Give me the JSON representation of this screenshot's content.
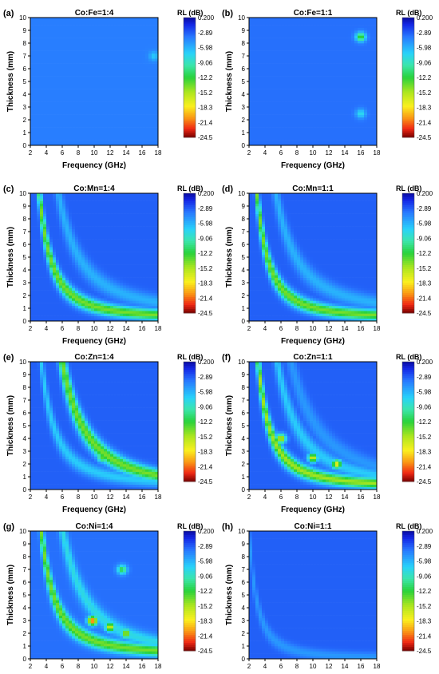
{
  "chart_data": [
    {
      "type": "heatmap",
      "panel": "(a)",
      "title": "Co:Fe=1:4",
      "xlabel": "Frequency (GHz)",
      "ylabel": "Thickness (mm)",
      "xlim": [
        2,
        18
      ],
      "ylim": [
        0,
        10
      ],
      "xticks": [
        2,
        4,
        6,
        8,
        10,
        12,
        14,
        16,
        18
      ],
      "yticks": [
        0,
        1,
        2,
        3,
        4,
        5,
        6,
        7,
        8,
        9,
        10
      ],
      "colorbar": {
        "title": "RL (dB)",
        "ticks": [
          "0.200",
          "-2.89",
          "-5.98",
          "-9.06",
          "-12.2",
          "-15.2",
          "-18.3",
          "-21.4",
          "-24.5"
        ],
        "range": [
          -24.5,
          0.2
        ]
      },
      "base_rl": -4,
      "bands": [],
      "spots": [
        {
          "f": 17.5,
          "t": 7,
          "rl": -7
        }
      ]
    },
    {
      "type": "heatmap",
      "panel": "(b)",
      "title": "Co:Fe=1:1",
      "xlabel": "Frequency (GHz)",
      "ylabel": "Thickness (mm)",
      "xlim": [
        2,
        18
      ],
      "ylim": [
        0,
        10
      ],
      "xticks": [
        2,
        4,
        6,
        8,
        10,
        12,
        14,
        16,
        18
      ],
      "yticks": [
        0,
        1,
        2,
        3,
        4,
        5,
        6,
        7,
        8,
        9,
        10
      ],
      "colorbar": {
        "title": "RL (dB)",
        "ticks": [
          "0.200",
          "-2.89",
          "-5.98",
          "-9.06",
          "-12.2",
          "-15.2",
          "-18.3",
          "-21.4",
          "-24.5"
        ],
        "range": [
          -24.5,
          0.2
        ]
      },
      "base_rl": -3.5,
      "bands": [],
      "spots": [
        {
          "f": 16,
          "t": 8.5,
          "rl": -13
        },
        {
          "f": 16,
          "t": 2.5,
          "rl": -8
        }
      ]
    },
    {
      "type": "heatmap",
      "panel": "(c)",
      "title": "Co:Mn=1:4",
      "xlabel": "Frequency (GHz)",
      "ylabel": "Thickness (mm)",
      "xlim": [
        2,
        18
      ],
      "ylim": [
        0,
        10
      ],
      "xticks": [
        2,
        4,
        6,
        8,
        10,
        12,
        14,
        16,
        18
      ],
      "yticks": [
        0,
        1,
        2,
        3,
        4,
        5,
        6,
        7,
        8,
        9,
        10
      ],
      "colorbar": {
        "title": "RL (dB)",
        "ticks": [
          "0.200",
          "-2.89",
          "-5.98",
          "-9.06",
          "-12.2",
          "-15.2",
          "-18.3",
          "-21.4",
          "-24.5"
        ],
        "range": [
          -24.5,
          0.2
        ]
      },
      "base_rl": -3,
      "bands": [
        {
          "k": 24,
          "c": 0.2,
          "rl": -14
        },
        {
          "k": 72,
          "c": 0.6,
          "rl": -6
        }
      ],
      "spots": []
    },
    {
      "type": "heatmap",
      "panel": "(d)",
      "title": "Co:Mn=1:1",
      "xlabel": "Frequency (GHz)",
      "ylabel": "Thickness (mm)",
      "xlim": [
        2,
        18
      ],
      "ylim": [
        0,
        10
      ],
      "xticks": [
        2,
        4,
        6,
        8,
        10,
        12,
        14,
        16,
        18
      ],
      "yticks": [
        0,
        1,
        2,
        3,
        4,
        5,
        6,
        7,
        8,
        9,
        10
      ],
      "colorbar": {
        "title": "RL (dB)",
        "ticks": [
          "0.200",
          "-2.89",
          "-5.98",
          "-9.06",
          "-12.2",
          "-15.2",
          "-18.3",
          "-21.4",
          "-24.5"
        ],
        "range": [
          -24.5,
          0.2
        ]
      },
      "base_rl": -3,
      "bands": [
        {
          "k": 22,
          "c": 0.2,
          "rl": -14
        },
        {
          "k": 68,
          "c": 0.6,
          "rl": -6
        }
      ],
      "spots": []
    },
    {
      "type": "heatmap",
      "panel": "(e)",
      "title": "Co:Zn=1:4",
      "xlabel": "Frequency (GHz)",
      "ylabel": "Thickness (mm)",
      "xlim": [
        2,
        18
      ],
      "ylim": [
        0,
        10
      ],
      "xticks": [
        2,
        4,
        6,
        8,
        10,
        12,
        14,
        16,
        18
      ],
      "yticks": [
        0,
        1,
        2,
        3,
        4,
        5,
        6,
        7,
        8,
        9,
        10
      ],
      "colorbar": {
        "title": "RL (dB)",
        "ticks": [
          "0.200",
          "-2.89",
          "-5.98",
          "-9.06",
          "-12.2",
          "-15.2",
          "-18.3",
          "-21.4",
          "-24.5"
        ],
        "range": [
          -24.5,
          0.2
        ]
      },
      "base_rl": -3,
      "bands": [
        {
          "k": 28,
          "c": 0.3,
          "rl": -7
        },
        {
          "k": 90,
          "c": 0,
          "rl": -14
        }
      ],
      "spots": [
        {
          "f": 11,
          "t": 2.5,
          "rl": -13
        }
      ]
    },
    {
      "type": "heatmap",
      "panel": "(f)",
      "title": "Co:Zn=1:1",
      "xlabel": "Frequency (GHz)",
      "ylabel": "Thickness (mm)",
      "xlim": [
        2,
        18
      ],
      "ylim": [
        0,
        10
      ],
      "xticks": [
        2,
        4,
        6,
        8,
        10,
        12,
        14,
        16,
        18
      ],
      "yticks": [
        0,
        1,
        2,
        3,
        4,
        5,
        6,
        7,
        8,
        9,
        10
      ],
      "colorbar": {
        "title": "RL (dB)",
        "ticks": [
          "0.200",
          "-2.89",
          "-5.98",
          "-9.06",
          "-12.2",
          "-15.2",
          "-18.3",
          "-21.4",
          "-24.5"
        ],
        "range": [
          -24.5,
          0.2
        ]
      },
      "base_rl": -3,
      "bands": [
        {
          "k": 24,
          "c": 0.2,
          "rl": -15
        },
        {
          "k": 75,
          "c": 0.2,
          "rl": -7
        },
        {
          "k": 130,
          "c": 0.2,
          "rl": -5
        }
      ],
      "spots": [
        {
          "f": 13,
          "t": 2,
          "rl": -18
        },
        {
          "f": 10,
          "t": 2.5,
          "rl": -17
        },
        {
          "f": 6,
          "t": 4,
          "rl": -17
        }
      ]
    },
    {
      "type": "heatmap",
      "panel": "(g)",
      "title": "Co:Ni=1:4",
      "xlabel": "Frequency (GHz)",
      "ylabel": "Thickness (mm)",
      "xlim": [
        2,
        18
      ],
      "ylim": [
        0,
        10
      ],
      "xticks": [
        2,
        4,
        6,
        8,
        10,
        12,
        14,
        16,
        18
      ],
      "yticks": [
        0,
        1,
        2,
        3,
        4,
        5,
        6,
        7,
        8,
        9,
        10
      ],
      "colorbar": {
        "title": "RL (dB)",
        "ticks": [
          "0.200",
          "-2.89",
          "-5.98",
          "-9.06",
          "-12.2",
          "-15.2",
          "-18.3",
          "-21.4",
          "-24.5"
        ],
        "range": [
          -24.5,
          0.2
        ]
      },
      "base_rl": -3.5,
      "bands": [
        {
          "k": 28,
          "c": 0.3,
          "rl": -14
        },
        {
          "k": 90,
          "c": 0.2,
          "rl": -8
        }
      ],
      "spots": [
        {
          "f": 9.8,
          "t": 3,
          "rl": -22
        },
        {
          "f": 12,
          "t": 2.5,
          "rl": -17
        },
        {
          "f": 14,
          "t": 2,
          "rl": -16
        },
        {
          "f": 13.5,
          "t": 7,
          "rl": -12
        }
      ]
    },
    {
      "type": "heatmap",
      "panel": "(h)",
      "title": "Co:Ni=1:1",
      "xlabel": "Frequency (GHz)",
      "ylabel": "Thickness (mm)",
      "xlim": [
        2,
        18
      ],
      "ylim": [
        0,
        10
      ],
      "xticks": [
        2,
        4,
        6,
        8,
        10,
        12,
        14,
        16,
        18
      ],
      "yticks": [
        0,
        1,
        2,
        3,
        4,
        5,
        6,
        7,
        8,
        9,
        10
      ],
      "colorbar": {
        "title": "RL (dB)",
        "ticks": [
          "0.200",
          "-2.89",
          "-5.98",
          "-9.06",
          "-12.2",
          "-15.2",
          "-18.3",
          "-21.4",
          "-24.5"
        ],
        "range": [
          -24.5,
          0.2
        ]
      },
      "base_rl": -3,
      "bands": [
        {
          "k": 10,
          "c": 0,
          "rl": -5
        }
      ],
      "spots": []
    }
  ]
}
